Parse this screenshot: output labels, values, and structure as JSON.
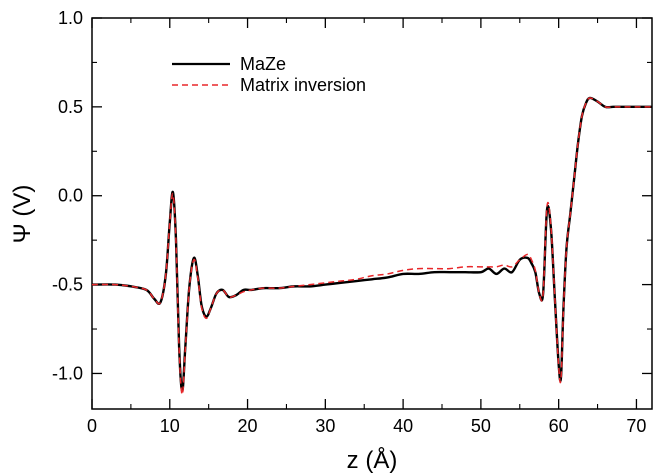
{
  "chart_data": {
    "type": "line",
    "title": "",
    "xlabel": "z (Å)",
    "ylabel": "Ψ (V)",
    "xlim": [
      0,
      72
    ],
    "ylim": [
      -1.2,
      1.0
    ],
    "x_ticks": [
      0,
      10,
      20,
      30,
      40,
      50,
      60,
      70
    ],
    "y_ticks": [
      1.0,
      0.5,
      0.0,
      -0.5,
      -1.0
    ],
    "x_tick_labels": [
      "0",
      "10",
      "20",
      "30",
      "40",
      "50",
      "60",
      "70"
    ],
    "y_tick_labels": [
      "1.0",
      "0.5",
      "0.0",
      "-0.5",
      "-1.0"
    ],
    "grid": false,
    "legend_position": "top-left",
    "series": [
      {
        "name": "MaZe",
        "color": "#000000",
        "style": "solid",
        "x": [
          0,
          3,
          5,
          7,
          8,
          8.8,
          9.5,
          10,
          10.4,
          10.8,
          11.2,
          11.6,
          12,
          12.5,
          13.1,
          13.6,
          14.1,
          14.7,
          15.3,
          16,
          16.8,
          17.6,
          18.5,
          19.5,
          20.5,
          22,
          24,
          26,
          28,
          30,
          32,
          34,
          36,
          38,
          40,
          42,
          44,
          46,
          48,
          50,
          51,
          52,
          53,
          54,
          55,
          56,
          56.5,
          57,
          57.5,
          58,
          58.5,
          59,
          59.5,
          60,
          60.3,
          60.6,
          61,
          61.5,
          62,
          62.5,
          63,
          63.5,
          64,
          65,
          66,
          67,
          68,
          70,
          72
        ],
        "y": [
          -0.5,
          -0.5,
          -0.51,
          -0.53,
          -0.58,
          -0.6,
          -0.44,
          -0.15,
          0.02,
          -0.25,
          -0.85,
          -1.1,
          -0.85,
          -0.52,
          -0.35,
          -0.45,
          -0.62,
          -0.68,
          -0.63,
          -0.55,
          -0.53,
          -0.57,
          -0.56,
          -0.53,
          -0.53,
          -0.52,
          -0.52,
          -0.51,
          -0.51,
          -0.5,
          -0.49,
          -0.48,
          -0.47,
          -0.46,
          -0.44,
          -0.44,
          -0.43,
          -0.43,
          -0.43,
          -0.43,
          -0.41,
          -0.44,
          -0.41,
          -0.43,
          -0.36,
          -0.35,
          -0.38,
          -0.43,
          -0.55,
          -0.55,
          -0.08,
          -0.18,
          -0.57,
          -0.95,
          -1.02,
          -0.65,
          -0.3,
          -0.1,
          0.1,
          0.3,
          0.45,
          0.52,
          0.55,
          0.53,
          0.5,
          0.5,
          0.5,
          0.5,
          0.5
        ]
      },
      {
        "name": "Matrix inversion",
        "color": "#e8272a",
        "style": "dashed",
        "x": [
          0,
          3,
          5,
          7,
          8,
          8.8,
          9.5,
          10,
          10.4,
          10.8,
          11.2,
          11.6,
          12,
          12.5,
          13.1,
          13.6,
          14.1,
          14.7,
          15.3,
          16,
          16.8,
          17.6,
          18.5,
          19.5,
          20.5,
          22,
          24,
          26,
          28,
          30,
          32,
          34,
          36,
          38,
          40,
          42,
          44,
          46,
          48,
          50,
          51,
          52,
          53,
          54,
          55,
          56,
          56.5,
          57,
          57.5,
          58,
          58.5,
          59,
          59.5,
          60,
          60.3,
          60.6,
          61,
          61.5,
          62,
          62.5,
          63,
          63.5,
          64,
          65,
          66,
          67,
          68,
          70,
          72
        ],
        "y": [
          -0.5,
          -0.5,
          -0.51,
          -0.53,
          -0.58,
          -0.6,
          -0.44,
          -0.15,
          0.01,
          -0.26,
          -0.86,
          -1.12,
          -0.86,
          -0.52,
          -0.36,
          -0.46,
          -0.63,
          -0.69,
          -0.63,
          -0.55,
          -0.53,
          -0.57,
          -0.56,
          -0.54,
          -0.53,
          -0.52,
          -0.52,
          -0.51,
          -0.5,
          -0.49,
          -0.48,
          -0.47,
          -0.45,
          -0.44,
          -0.42,
          -0.41,
          -0.41,
          -0.41,
          -0.4,
          -0.4,
          -0.4,
          -0.4,
          -0.39,
          -0.4,
          -0.36,
          -0.33,
          -0.36,
          -0.42,
          -0.55,
          -0.55,
          -0.06,
          -0.17,
          -0.57,
          -0.96,
          -1.03,
          -0.66,
          -0.3,
          -0.1,
          0.1,
          0.3,
          0.45,
          0.52,
          0.55,
          0.53,
          0.5,
          0.5,
          0.5,
          0.5,
          0.5
        ]
      }
    ]
  }
}
